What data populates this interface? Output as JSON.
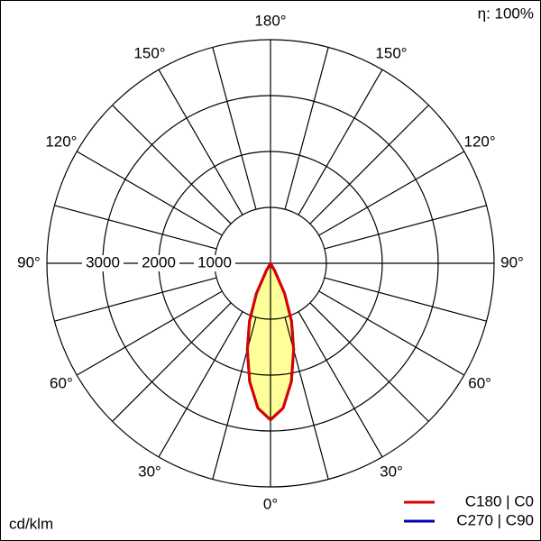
{
  "chart_data": {
    "type": "polar",
    "efficiency_label": "η: 100%",
    "unit_label": "cd/klm",
    "rlim": [
      0,
      4000
    ],
    "rticks": [
      1000,
      2000,
      3000
    ],
    "theta_grid": [
      0,
      15,
      30,
      45,
      60,
      75,
      90,
      105,
      120,
      135,
      150,
      165
    ],
    "thetaticks": [
      {
        "value": 0,
        "label": "0°"
      },
      {
        "value": 30,
        "label": "30°"
      },
      {
        "value": 60,
        "label": "60°"
      },
      {
        "value": 90,
        "label": "90°"
      },
      {
        "value": 120,
        "label": "120°"
      },
      {
        "value": 150,
        "label": "150°"
      },
      {
        "value": 180,
        "label": "180°"
      }
    ],
    "angles": [
      -30,
      -25,
      -20,
      -15,
      -10,
      -5,
      0,
      5,
      10,
      15,
      20,
      25,
      30
    ],
    "fill": "#ffff99",
    "series": [
      {
        "name": "C270 | C90",
        "color": "#0000aa",
        "values": [
          150,
          600,
          1100,
          1600,
          2150,
          2600,
          2800,
          2600,
          2150,
          1600,
          1100,
          600,
          150
        ]
      },
      {
        "name": "C180 | C0",
        "color": "#dd0000",
        "values": [
          150,
          600,
          1100,
          1600,
          2150,
          2600,
          2800,
          2600,
          2150,
          1600,
          1100,
          600,
          150
        ]
      }
    ]
  }
}
